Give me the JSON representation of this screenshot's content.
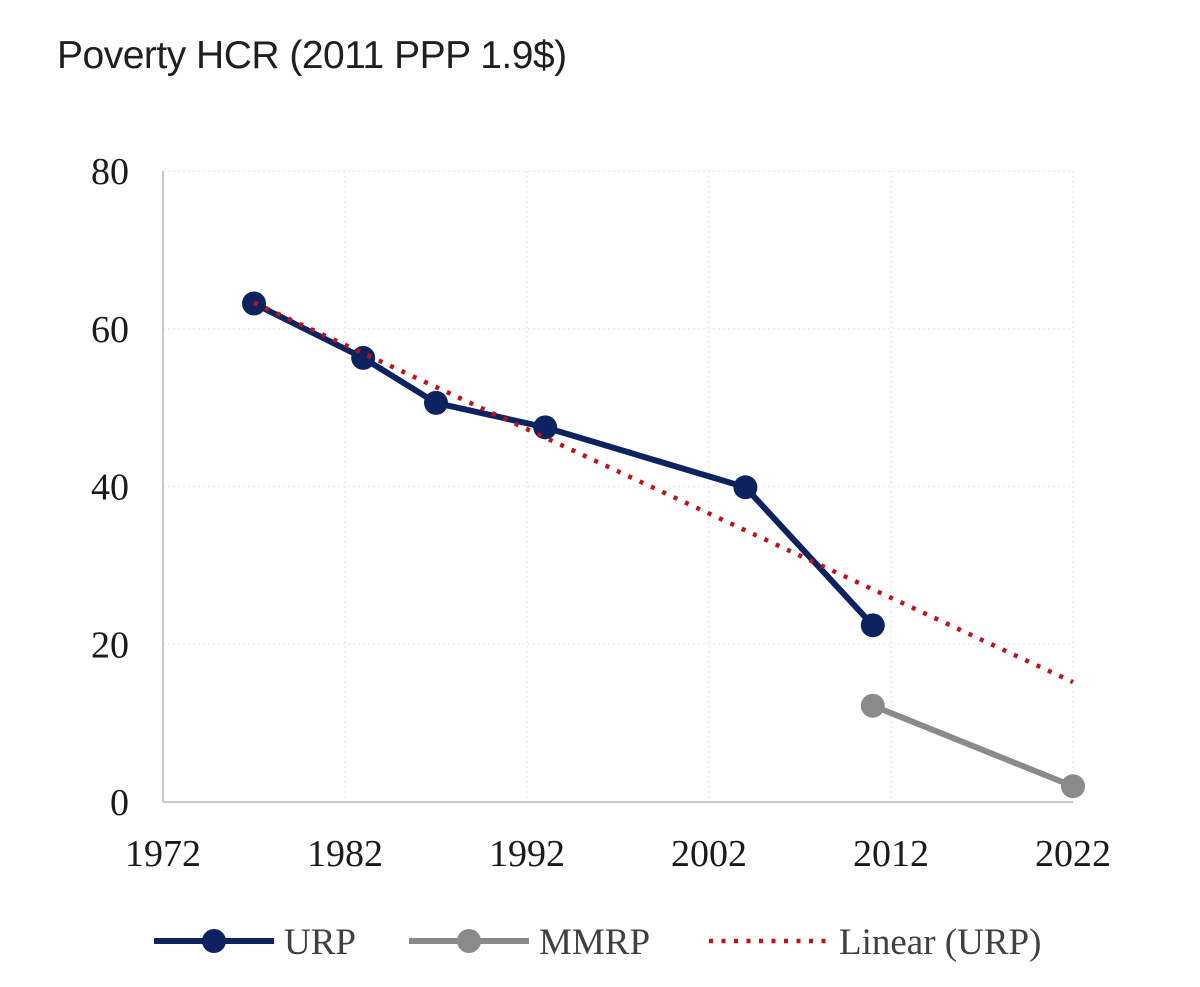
{
  "chart_data": {
    "type": "line",
    "title": "Poverty HCR (2011 PPP 1.9$)",
    "xlabel": "",
    "ylabel": "",
    "xlim": [
      1972,
      2022
    ],
    "ylim": [
      0,
      80
    ],
    "x_ticks": [
      1972,
      1982,
      1992,
      2002,
      2012,
      2022
    ],
    "y_ticks": [
      0,
      20,
      40,
      60,
      80
    ],
    "grid": true,
    "legend_position": "bottom",
    "series": [
      {
        "name": "URP",
        "style": "solid-marker",
        "color": "#0d2360",
        "x": [
          1977,
          1983,
          1987,
          1993,
          2004,
          2011
        ],
        "y": [
          63.2,
          56.3,
          50.6,
          47.5,
          39.9,
          22.4
        ]
      },
      {
        "name": "MMRP",
        "style": "solid-marker",
        "color": "#8a8a8a",
        "x": [
          2011,
          2022
        ],
        "y": [
          12.2,
          2.0
        ]
      },
      {
        "name": "Linear (URP)",
        "style": "dotted",
        "color": "#c0101a",
        "x": [
          1977,
          2022
        ],
        "y": [
          63.3,
          15.2
        ]
      }
    ]
  }
}
